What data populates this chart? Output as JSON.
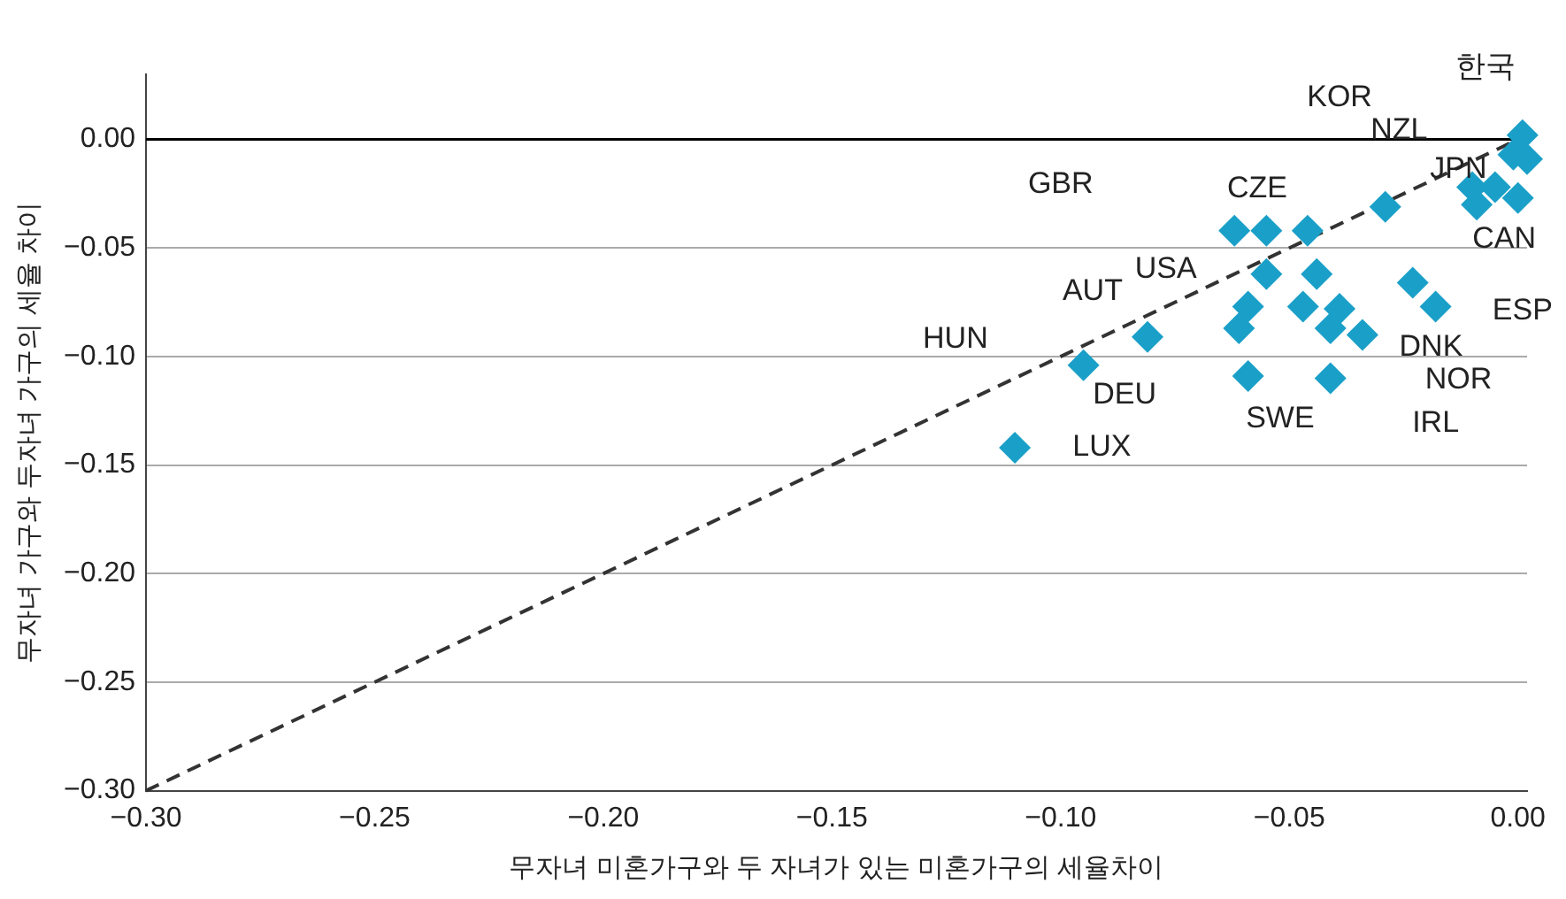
{
  "chart_data": {
    "type": "scatter",
    "xlabel": "무자녀 미혼가구와 두 자녀가 있는 미혼가구의 세율차이",
    "ylabel": "무자녀 가구와 두자녀 가구의 세율 차이",
    "xlim": [
      -0.3,
      0.002
    ],
    "xticks": [
      {
        "value": -0.3,
        "label": "−0.30"
      },
      {
        "value": -0.25,
        "label": "−0.25"
      },
      {
        "value": -0.2,
        "label": "−0.20"
      },
      {
        "value": -0.15,
        "label": "−0.15"
      },
      {
        "value": -0.1,
        "label": "−0.10"
      },
      {
        "value": -0.05,
        "label": "−0.05"
      },
      {
        "value": 0,
        "label": "0.00"
      }
    ],
    "ylim": [
      -0.3,
      0.03
    ],
    "yticks": [
      {
        "value": 0,
        "label": "0.00"
      },
      {
        "value": -0.05,
        "label": "−0.05"
      },
      {
        "value": -0.1,
        "label": "−0.10"
      },
      {
        "value": -0.15,
        "label": "−0.15"
      },
      {
        "value": -0.2,
        "label": "−0.20"
      },
      {
        "value": -0.25,
        "label": "−0.25"
      },
      {
        "value": -0.3,
        "label": "−0.30"
      }
    ],
    "grid": "y",
    "legend": false,
    "marker": "diamond",
    "series": [
      {
        "type": "scatter",
        "color": "#1aa0c8",
        "x": [
          -0.11,
          -0.095,
          -0.081,
          -0.062,
          -0.055,
          -0.046,
          -0.055,
          -0.044,
          -0.059,
          -0.061,
          -0.047,
          -0.039,
          -0.041,
          -0.034,
          -0.059,
          -0.041,
          -0.023,
          -0.018,
          -0.029,
          0.001,
          -0.001,
          0.002,
          -0.005,
          -0.009,
          0,
          -0.01
        ],
        "values": [
          -0.142,
          -0.104,
          -0.091,
          -0.042,
          -0.042,
          -0.042,
          -0.062,
          -0.062,
          -0.077,
          -0.087,
          -0.077,
          -0.078,
          -0.087,
          -0.09,
          -0.109,
          -0.11,
          -0.066,
          -0.077,
          -0.031,
          0.002,
          -0.007,
          -0.009,
          -0.022,
          -0.03,
          -0.027,
          -0.022
        ]
      },
      {
        "type": "line",
        "color": "#333333",
        "line_style": "dashed",
        "marker": "none",
        "x": [
          -0.3,
          0
        ],
        "values": [
          -0.3,
          0
        ]
      }
    ],
    "ref_lines": [
      {
        "axis": "y",
        "value": 0,
        "color": "#000000",
        "line_style": "solid"
      }
    ],
    "annotations": [
      "KOR",
      "한국",
      "NZL",
      "JPN",
      "CAN",
      "ESP",
      "DNK",
      "NOR",
      "IRL",
      "SWE",
      "DEU",
      "LUX",
      "HUN",
      "AUT",
      "USA",
      "GBR",
      "CZE"
    ]
  }
}
